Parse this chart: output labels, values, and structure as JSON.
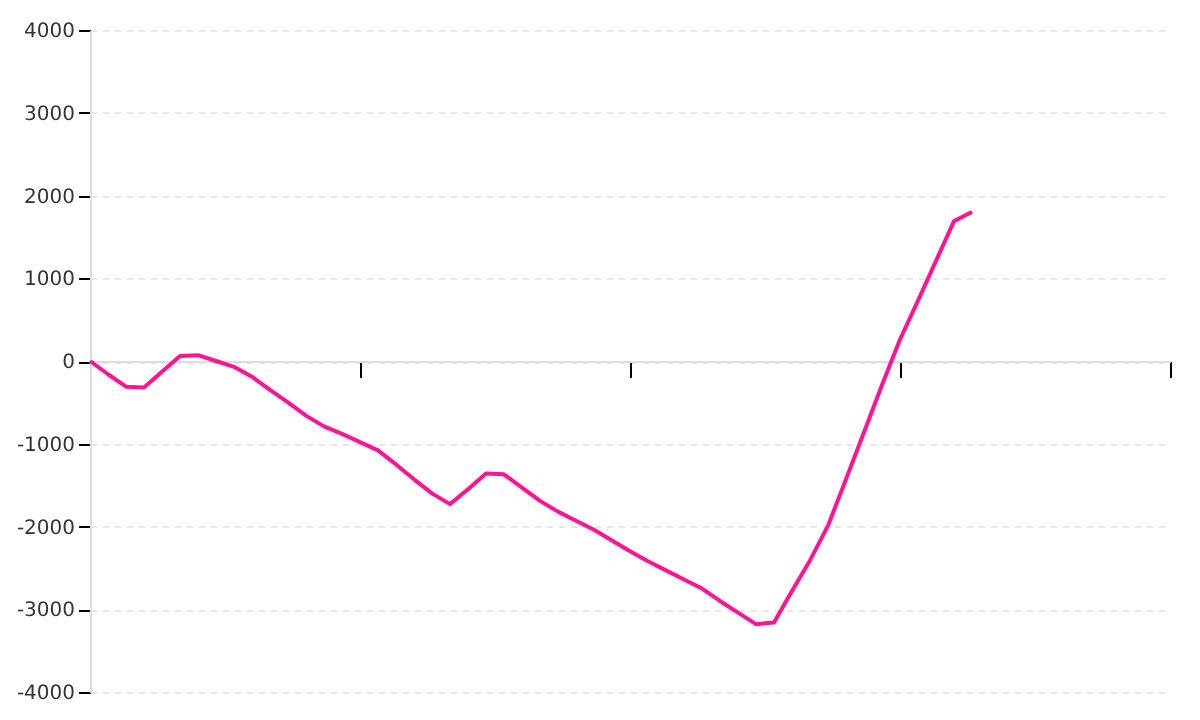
{
  "chart_data": {
    "type": "line",
    "categories": [
      null,
      null,
      null,
      null,
      null,
      null,
      null,
      null,
      null,
      null,
      null,
      null,
      null,
      null,
      null,
      null,
      null,
      null,
      null,
      null,
      null,
      null,
      null,
      null,
      null,
      null,
      null,
      null,
      null,
      null,
      null,
      null,
      null,
      null,
      null,
      null,
      null,
      null,
      null,
      null,
      null,
      null,
      null,
      null,
      null,
      null,
      null,
      null,
      null,
      null,
      null,
      null,
      null,
      null,
      null,
      null,
      null,
      null,
      null,
      null,
      null
    ],
    "series": [
      {
        "color": "#ff1493",
        "values": [
          0,
          -160,
          -310,
          -320,
          -130,
          60,
          70,
          0,
          -70,
          -190,
          -350,
          -500,
          -660,
          -790,
          -880,
          -980,
          -1080,
          -1250,
          -1430,
          -1600,
          -1730,
          -1550,
          -1360,
          -1370,
          -1530,
          -1690,
          -1820,
          -1930,
          -2040,
          -2170,
          -2300,
          -2420,
          -2530,
          -2640,
          -2750,
          -2900,
          -3040,
          -3180,
          -3160,
          -2780,
          -2410,
          -1990,
          -1430,
          -860,
          -290,
          260,
          730,
          1210,
          1690,
          1800,
          null,
          null,
          null,
          null,
          null,
          null,
          null,
          null,
          null,
          null,
          null
        ]
      }
    ],
    "ylim": [
      -4000,
      4000
    ],
    "yticks": [
      -4000,
      -3000,
      -2000,
      -1000,
      0,
      1000,
      2000,
      3000,
      4000
    ],
    "grid": "y",
    "marker": "none",
    "line_style": "solid",
    "tick_labels": "y"
  }
}
